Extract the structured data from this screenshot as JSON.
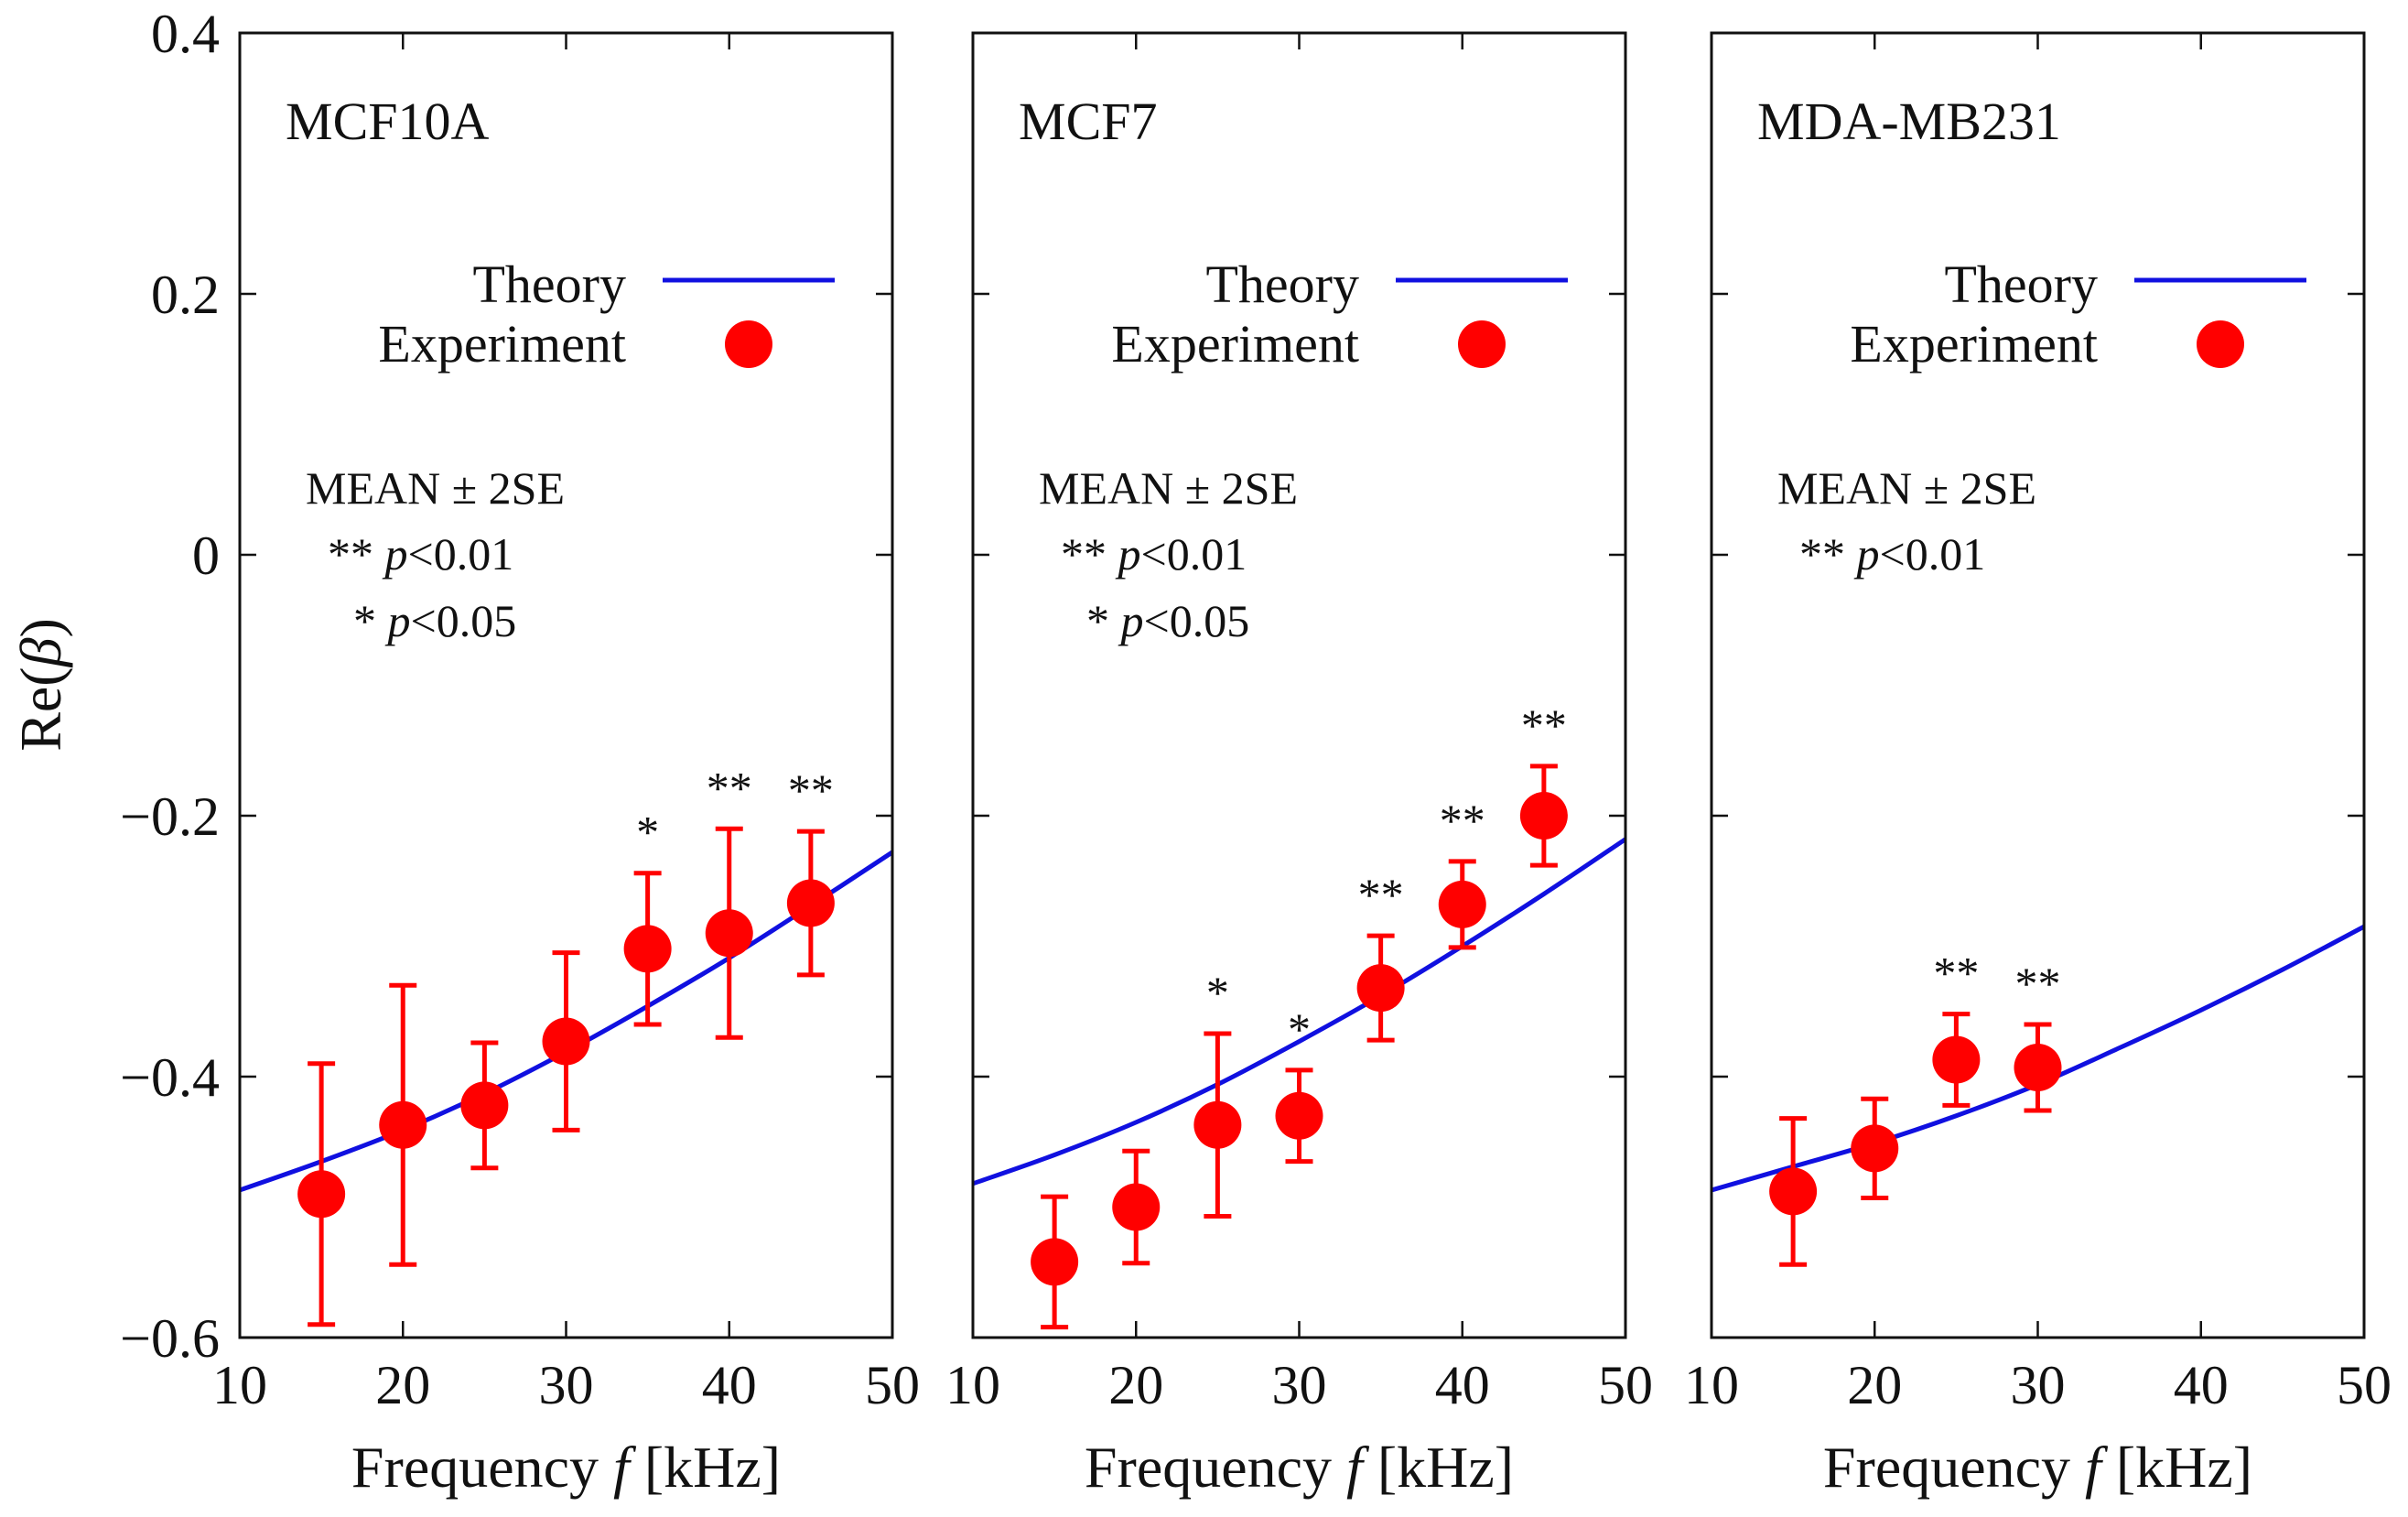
{
  "figure": {
    "y_label_prefix": "Re(",
    "y_label_symbol": "β",
    "y_label_suffix": ")",
    "x_label_prefix": "Frequency ",
    "x_label_symbol": "f",
    "x_label_suffix": " [kHz]",
    "legend_theory": "Theory",
    "legend_experiment": "Experiment",
    "note_mean": "MEAN ± 2SE",
    "note_p01_stars": "** ",
    "note_p05_stars": "* ",
    "note_p_symbol": "p",
    "note_p01_value": "<0.01",
    "note_p05_value": "<0.05",
    "theory_color": "#1010e0",
    "experiment_color": "#ff0000"
  },
  "chart_data": [
    {
      "type": "line+scatter",
      "title": "MCF10A",
      "xlabel": "Frequency f [kHz]",
      "ylabel": "Re(β)",
      "xlim": [
        10,
        50
      ],
      "ylim": [
        -0.6,
        0.4
      ],
      "xticks": [
        "10",
        "20",
        "30",
        "40",
        "50"
      ],
      "yticks": [
        "0.4",
        "0.2",
        "0",
        "−0.2",
        "−0.4",
        "−0.6"
      ],
      "theory": {
        "x": [
          10,
          15,
          20,
          25,
          30,
          35,
          40,
          45,
          50
        ],
        "y": [
          -0.487,
          -0.465,
          -0.441,
          -0.413,
          -0.381,
          -0.346,
          -0.309,
          -0.269,
          -0.228
        ]
      },
      "experiment": {
        "x": [
          15,
          20,
          25,
          30,
          35,
          40,
          45
        ],
        "y": [
          -0.49,
          -0.437,
          -0.422,
          -0.373,
          -0.302,
          -0.29,
          -0.267
        ],
        "err": [
          0.1,
          0.107,
          0.048,
          0.068,
          0.058,
          0.08,
          0.055
        ],
        "significance": [
          "",
          "",
          "",
          "",
          "*",
          "**",
          "**"
        ]
      },
      "notes": [
        "MEAN ± 2SE",
        "** p<0.01",
        "* p<0.05"
      ]
    },
    {
      "type": "line+scatter",
      "title": "MCF7",
      "xlabel": "Frequency f [kHz]",
      "ylabel": "",
      "xlim": [
        10,
        50
      ],
      "ylim": [
        -0.6,
        0.4
      ],
      "xticks": [
        "10",
        "20",
        "30",
        "40",
        "50"
      ],
      "yticks": [],
      "theory": {
        "x": [
          10,
          15,
          20,
          25,
          30,
          35,
          40,
          45,
          50
        ],
        "y": [
          -0.482,
          -0.46,
          -0.435,
          -0.406,
          -0.373,
          -0.338,
          -0.3,
          -0.26,
          -0.218
        ]
      },
      "experiment": {
        "x": [
          15,
          20,
          25,
          30,
          35,
          40,
          45
        ],
        "y": [
          -0.542,
          -0.5,
          -0.437,
          -0.43,
          -0.332,
          -0.268,
          -0.2
        ],
        "err": [
          0.05,
          0.043,
          0.07,
          0.035,
          0.04,
          0.033,
          0.038
        ],
        "significance": [
          "",
          "",
          "*",
          "*",
          "**",
          "**",
          "**"
        ]
      },
      "notes": [
        "MEAN ± 2SE",
        "** p<0.01",
        "* p<0.05"
      ]
    },
    {
      "type": "line+scatter",
      "title": "MDA-MB231",
      "xlabel": "Frequency f [kHz]",
      "ylabel": "",
      "xlim": [
        10,
        50
      ],
      "ylim": [
        -0.6,
        0.4
      ],
      "xticks": [
        "10",
        "20",
        "30",
        "40",
        "50"
      ],
      "yticks": [],
      "theory": {
        "x": [
          10,
          15,
          20,
          25,
          30,
          35,
          40,
          45,
          50
        ],
        "y": [
          -0.487,
          -0.469,
          -0.451,
          -0.43,
          -0.406,
          -0.378,
          -0.349,
          -0.318,
          -0.285
        ]
      },
      "experiment": {
        "x": [
          15,
          20,
          25,
          30
        ],
        "y": [
          -0.488,
          -0.455,
          -0.387,
          -0.393
        ],
        "err": [
          0.056,
          0.038,
          0.035,
          0.033
        ],
        "significance": [
          "",
          "",
          "**",
          "**"
        ]
      },
      "notes": [
        "MEAN ± 2SE",
        "** p<0.01"
      ]
    }
  ]
}
